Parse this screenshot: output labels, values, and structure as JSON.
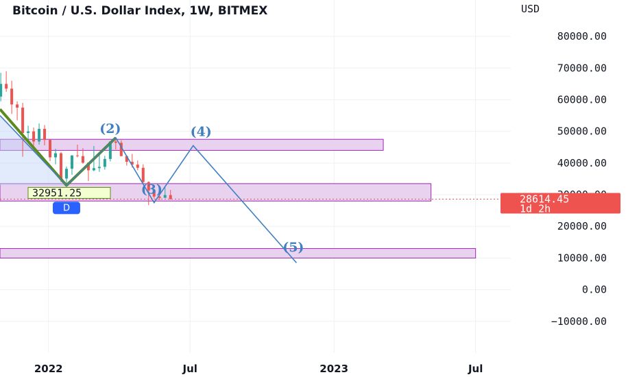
{
  "header": {
    "title": "Bitcoin / U.S. Dollar Index, 1W, BITMEX",
    "currency": "USD"
  },
  "colors": {
    "up": "#26a69a",
    "down": "#ef5350",
    "zone_fill": "#e7cdee",
    "zone_stroke": "#9c27b0",
    "wave_line": "#3f7fc1",
    "green_line": "#5b8a1e",
    "price_badge": "#ef5350"
  },
  "price_label": {
    "value": "28614.45",
    "countdown": "1d 2h"
  },
  "point_label": {
    "value": "32951.25",
    "marker": "D"
  },
  "chart_data": {
    "type": "candlestick",
    "title": "Bitcoin / U.S. Dollar Index, 1W, BITMEX",
    "ylabel": "USD",
    "ylim": [
      -20000,
      85000
    ],
    "xlim": [
      "2021-10-31",
      "2023-08-15"
    ],
    "y_ticks": [
      "80000.00",
      "70000.00",
      "60000.00",
      "50000.00",
      "40000.00",
      "30000.00",
      "20000.00",
      "10000.00",
      "0.00",
      "−10000.00"
    ],
    "y_tick_values": [
      80000,
      70000,
      60000,
      50000,
      40000,
      30000,
      20000,
      10000,
      0,
      -10000
    ],
    "x_ticks": [
      {
        "label": "2022",
        "date": "2022-01-01"
      },
      {
        "label": "Jul",
        "date": "2022-07-01"
      },
      {
        "label": "2023",
        "date": "2023-01-01"
      },
      {
        "label": "Jul",
        "date": "2023-07-01"
      }
    ],
    "current_price": 28614.45,
    "candles": [
      {
        "date": "2021-11-01",
        "o": 61000,
        "h": 68500,
        "l": 59500,
        "c": 65000
      },
      {
        "date": "2021-11-08",
        "o": 65000,
        "h": 69000,
        "l": 62500,
        "c": 63500
      },
      {
        "date": "2021-11-15",
        "o": 63500,
        "h": 66000,
        "l": 55500,
        "c": 58500
      },
      {
        "date": "2021-11-22",
        "o": 58500,
        "h": 59500,
        "l": 53500,
        "c": 57500
      },
      {
        "date": "2021-11-29",
        "o": 57500,
        "h": 59000,
        "l": 42000,
        "c": 49500
      },
      {
        "date": "2021-12-06",
        "o": 49500,
        "h": 51800,
        "l": 46800,
        "c": 50000
      },
      {
        "date": "2021-12-13",
        "o": 50000,
        "h": 51200,
        "l": 45500,
        "c": 46800
      },
      {
        "date": "2021-12-20",
        "o": 46800,
        "h": 52500,
        "l": 45800,
        "c": 50800
      },
      {
        "date": "2021-12-27",
        "o": 50800,
        "h": 52000,
        "l": 45600,
        "c": 47300
      },
      {
        "date": "2022-01-03",
        "o": 47300,
        "h": 47500,
        "l": 40600,
        "c": 41800
      },
      {
        "date": "2022-01-10",
        "o": 41800,
        "h": 44500,
        "l": 39600,
        "c": 43100
      },
      {
        "date": "2022-01-17",
        "o": 43100,
        "h": 43500,
        "l": 34000,
        "c": 35100
      },
      {
        "date": "2022-01-24",
        "o": 35100,
        "h": 38900,
        "l": 33000,
        "c": 38200
      },
      {
        "date": "2022-01-31",
        "o": 38200,
        "h": 42500,
        "l": 36300,
        "c": 42400
      },
      {
        "date": "2022-02-07",
        "o": 42400,
        "h": 45800,
        "l": 41800,
        "c": 42200
      },
      {
        "date": "2022-02-14",
        "o": 42200,
        "h": 44700,
        "l": 39800,
        "c": 40100
      },
      {
        "date": "2022-02-21",
        "o": 40100,
        "h": 40200,
        "l": 34300,
        "c": 37700
      },
      {
        "date": "2022-02-28",
        "o": 37700,
        "h": 45400,
        "l": 37400,
        "c": 38400
      },
      {
        "date": "2022-03-07",
        "o": 38400,
        "h": 42500,
        "l": 37200,
        "c": 38800
      },
      {
        "date": "2022-03-14",
        "o": 38800,
        "h": 42300,
        "l": 37900,
        "c": 41300
      },
      {
        "date": "2022-03-21",
        "o": 41300,
        "h": 46800,
        "l": 40500,
        "c": 46800
      },
      {
        "date": "2022-03-28",
        "o": 46800,
        "h": 48200,
        "l": 44300,
        "c": 46400
      },
      {
        "date": "2022-04-04",
        "o": 46400,
        "h": 47200,
        "l": 42100,
        "c": 42200
      },
      {
        "date": "2022-04-11",
        "o": 42200,
        "h": 42400,
        "l": 39200,
        "c": 40400
      },
      {
        "date": "2022-04-18",
        "o": 40400,
        "h": 42900,
        "l": 38600,
        "c": 39500
      },
      {
        "date": "2022-04-25",
        "o": 39500,
        "h": 40800,
        "l": 37700,
        "c": 38500
      },
      {
        "date": "2022-05-02",
        "o": 38500,
        "h": 39600,
        "l": 33700,
        "c": 34000
      },
      {
        "date": "2022-05-09",
        "o": 34000,
        "h": 34200,
        "l": 26700,
        "c": 31300
      },
      {
        "date": "2022-05-16",
        "o": 31300,
        "h": 31300,
        "l": 28800,
        "c": 29400
      },
      {
        "date": "2022-05-23",
        "o": 29400,
        "h": 31500,
        "l": 28300,
        "c": 29000
      },
      {
        "date": "2022-05-30",
        "o": 29000,
        "h": 32300,
        "l": 29300,
        "c": 29900
      },
      {
        "date": "2022-06-06",
        "o": 29900,
        "h": 31500,
        "l": 28500,
        "c": 28600
      }
    ],
    "zones": [
      {
        "start": "2021-10-31",
        "end": "2023-03-05",
        "top": 47500,
        "bottom": 44000
      },
      {
        "start": "2021-10-31",
        "end": "2023-05-05",
        "top": 33500,
        "bottom": 28000
      },
      {
        "start": "2021-10-31",
        "end": "2023-07-01",
        "top": 13000,
        "bottom": 10000
      }
    ],
    "green_lines": [
      [
        {
          "date": "2021-10-31",
          "y": 57000
        },
        {
          "date": "2022-01-24",
          "y": 32951
        },
        {
          "date": "2022-03-28",
          "y": 48000
        }
      ]
    ],
    "wave_path": [
      {
        "date": "2021-10-31",
        "y": 55000
      },
      {
        "date": "2022-01-24",
        "y": 32951
      },
      {
        "date": "2022-03-28",
        "y": 48000
      },
      {
        "date": "2022-05-16",
        "y": 27500
      },
      {
        "date": "2022-07-05",
        "y": 45500
      },
      {
        "date": "2022-11-14",
        "y": 8500
      }
    ],
    "wave_labels": [
      {
        "text": "(2)",
        "date": "2022-03-21",
        "y": 49500
      },
      {
        "text": "(3)",
        "date": "2022-05-13",
        "y": 30300
      },
      {
        "text": "(4)",
        "date": "2022-07-15",
        "y": 48500
      },
      {
        "text": "(5)",
        "date": "2022-11-10",
        "y": 12000
      }
    ]
  }
}
